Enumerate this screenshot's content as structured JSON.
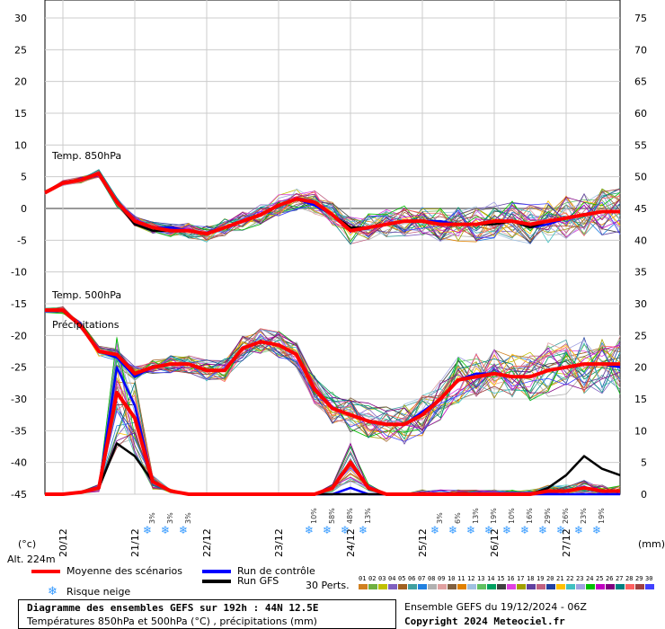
{
  "chart_data": {
    "type": "line",
    "left_axis": {
      "ticks": [
        30,
        25,
        20,
        15,
        10,
        5,
        0,
        -5,
        -10,
        -15,
        -20,
        -25,
        -30,
        -35,
        -40,
        -45
      ],
      "unit": "(°c)",
      "ylim": [
        -45,
        30
      ]
    },
    "right_axis": {
      "ticks": [
        75,
        70,
        65,
        60,
        55,
        50,
        45,
        40,
        35,
        30,
        25,
        20,
        15,
        10,
        5,
        0
      ],
      "unit": "(mm)",
      "ylim": [
        0,
        75
      ]
    },
    "dates": [
      "20/12",
      "21/12",
      "22/12",
      "23/12",
      "24/12",
      "25/12",
      "26/12",
      "27/12"
    ],
    "altitude": "Alt. 224m",
    "panel_labels": [
      "Temp. 850hPa",
      "Temp. 500hPa",
      "Précipitations"
    ],
    "x_steps": 32,
    "series": [
      {
        "name": "Moyenne des scénarios",
        "color": "#ff0000",
        "t850": [
          2.5,
          4,
          4.5,
          5.5,
          1,
          -2,
          -3,
          -3.5,
          -3.5,
          -4,
          -3,
          -2,
          -1,
          0.5,
          1.5,
          1,
          -1,
          -3.5,
          -3,
          -2.5,
          -2,
          -2,
          -2.5,
          -2.5,
          -2.5,
          -2,
          -2,
          -2.5,
          -2,
          -1.5,
          -1,
          -0.5,
          -0.5
        ],
        "t500": [
          -16,
          -16,
          -18.5,
          -22.5,
          -23,
          -26,
          -25,
          -24.5,
          -24.5,
          -25.5,
          -25.5,
          -22,
          -21,
          -21.5,
          -23,
          -28.5,
          -31.5,
          -32.5,
          -33.5,
          -34,
          -34,
          -32.5,
          -30,
          -27,
          -26.5,
          -26,
          -26.5,
          -26.5,
          -25.5,
          -25,
          -24.5,
          -24.5,
          -24.5
        ],
        "precip": [
          0,
          0,
          0.3,
          1,
          16,
          12,
          2,
          0.5,
          0,
          0,
          0,
          0,
          0,
          0,
          0,
          0,
          1,
          5,
          1,
          0,
          0,
          0,
          0,
          0,
          0,
          0,
          0,
          0,
          0.5,
          0.5,
          1,
          0.5,
          0.5
        ]
      },
      {
        "name": "Run de contrôle",
        "color": "#0000ff",
        "t850": [
          2.5,
          4,
          4.5,
          5.5,
          1,
          -2.5,
          -3,
          -3,
          -3.5,
          -4,
          -3,
          -2,
          -1,
          0.5,
          1.5,
          0.5,
          -1,
          -3.5,
          -3,
          -2.5,
          -2,
          -2,
          -2,
          -2.5,
          -2.5,
          -2,
          -2,
          -3,
          -2.5,
          -1.5,
          -1,
          -0.5,
          -0.5
        ],
        "t500": [
          -16,
          -16,
          -18.5,
          -22.5,
          -23.5,
          -26.5,
          -25,
          -24.5,
          -24.5,
          -25.5,
          -25.5,
          -22,
          -21,
          -21.5,
          -23,
          -28.5,
          -31.5,
          -32.5,
          -33.5,
          -34,
          -34,
          -32,
          -30,
          -27,
          -26,
          -26,
          -26.5,
          -26.5,
          -25.5,
          -25,
          -24.5,
          -24.5,
          -25
        ],
        "precip": [
          0,
          0,
          0.3,
          1,
          20,
          14,
          2,
          0.5,
          0,
          0,
          0,
          0,
          0,
          0,
          0,
          0,
          0,
          1,
          0,
          0,
          0,
          0,
          0,
          0,
          0,
          0,
          0,
          0,
          0,
          0,
          0,
          0,
          0
        ]
      },
      {
        "name": "Run GFS",
        "color": "#000000",
        "t850": [
          2.5,
          4,
          4.5,
          5.5,
          1,
          -2.5,
          -3.5,
          -3.5,
          -3.5,
          -4,
          -3,
          -2,
          -1,
          0.5,
          1.5,
          1,
          -1,
          -3,
          -3,
          -2.5,
          -2,
          -2,
          -2.5,
          -2.5,
          -2.5,
          -2.5,
          -2,
          -3,
          -2,
          -1.5,
          -1,
          -0.5,
          -0.5
        ],
        "t500": [
          -16,
          -16,
          -18.5,
          -22.5,
          -23,
          -26,
          -25,
          -24.5,
          -24.5,
          -25.5,
          -25.5,
          -22,
          -21,
          -21.5,
          -23,
          -28.5,
          -31.5,
          -32.5,
          -33.5,
          -34,
          -34,
          -32.5,
          -30,
          -27,
          -26.5,
          -26,
          -26.5,
          -26.5,
          -25.5,
          -25,
          -24.5,
          -24.5,
          -24.5
        ],
        "precip": [
          0,
          0,
          0.3,
          1,
          8,
          6,
          2,
          0.5,
          0,
          0,
          0,
          0,
          0,
          0,
          0,
          0,
          0,
          0,
          0,
          0,
          0,
          0,
          0,
          0,
          0,
          0,
          0,
          0,
          1,
          3,
          6,
          4,
          3
        ]
      }
    ],
    "snow_risk": [
      {
        "step": 6,
        "label": "3%"
      },
      {
        "step": 7,
        "label": "3%"
      },
      {
        "step": 8,
        "label": "3%"
      },
      {
        "step": 15,
        "label": "10%"
      },
      {
        "step": 16,
        "label": "58%"
      },
      {
        "step": 17,
        "label": "48%"
      },
      {
        "step": 18,
        "label": "13%"
      },
      {
        "step": 22,
        "label": "3%"
      },
      {
        "step": 23,
        "label": "6%"
      },
      {
        "step": 24,
        "label": "13%"
      },
      {
        "step": 25,
        "label": "19%"
      },
      {
        "step": 26,
        "label": "10%"
      },
      {
        "step": 27,
        "label": "16%"
      },
      {
        "step": 28,
        "label": "29%"
      },
      {
        "step": 29,
        "label": "26%"
      },
      {
        "step": 30,
        "label": "23%"
      },
      {
        "step": 31,
        "label": "19%"
      }
    ]
  },
  "legend": {
    "mean": "Moyenne des scénarios",
    "control": "Run de contrôle",
    "gfs": "Run GFS",
    "snow": "Risque neige",
    "perts_label": "30 Perts.",
    "pert_numbers": [
      "01",
      "02",
      "03",
      "04",
      "05",
      "06",
      "07",
      "08",
      "09",
      "10",
      "11",
      "12",
      "13",
      "14",
      "15",
      "16",
      "17",
      "18",
      "19",
      "20",
      "21",
      "22",
      "23",
      "24",
      "25",
      "26",
      "27",
      "28",
      "29",
      "30"
    ],
    "pert_colors": [
      "#d08020",
      "#70b040",
      "#c0c000",
      "#8060c0",
      "#a06020",
      "#40a0a0",
      "#2080e0",
      "#b0b0b0",
      "#e0a0a0",
      "#806040",
      "#e08000",
      "#a0c0e0",
      "#60c060",
      "#00a060",
      "#404040",
      "#e040e0",
      "#a0a000",
      "#6040a0",
      "#c06080",
      "#2040a0",
      "#ffc000",
      "#40c0c0",
      "#a0a0e0",
      "#00c000",
      "#c000c0",
      "#800080",
      "#008080",
      "#ff6060",
      "#a04040",
      "#4040ff"
    ]
  },
  "footer": {
    "title": "Diagramme des ensembles GEFS sur 192h : 44N 12.5E",
    "subtitle": "Températures 850hPa et 500hPa (°C) , précipitations (mm)",
    "run": "Ensemble GEFS du 19/12/2024 - 06Z",
    "copyright": "Copyright 2024 Meteociel.fr"
  }
}
